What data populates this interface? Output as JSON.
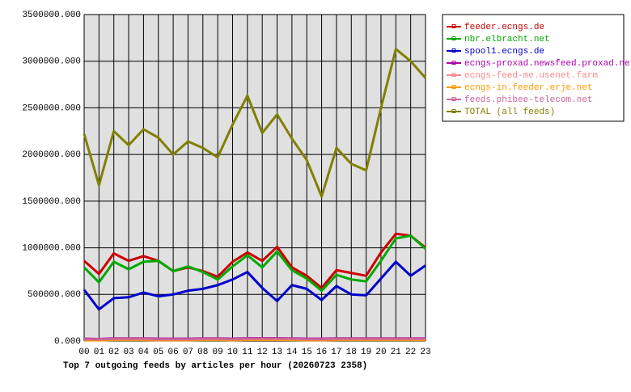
{
  "chart_data": {
    "type": "line",
    "title": "Top 7 outgoing feeds by articles per hour (20260723 2358)",
    "categories": [
      "00",
      "01",
      "02",
      "03",
      "04",
      "05",
      "06",
      "07",
      "08",
      "09",
      "10",
      "11",
      "12",
      "13",
      "14",
      "15",
      "16",
      "17",
      "18",
      "19",
      "20",
      "21",
      "22",
      "23"
    ],
    "ylim": [
      0,
      3500000
    ],
    "yticks": [
      {
        "value": 0,
        "label": "0.000"
      },
      {
        "value": 500000,
        "label": "500000.000"
      },
      {
        "value": 1000000,
        "label": "1000000.000"
      },
      {
        "value": 1500000,
        "label": "1500000.000"
      },
      {
        "value": 2000000,
        "label": "2000000.000"
      },
      {
        "value": 2500000,
        "label": "2500000.000"
      },
      {
        "value": 3000000,
        "label": "3000000.000"
      },
      {
        "value": 3500000,
        "label": "3500000.000"
      }
    ],
    "grid": true,
    "legend": "right",
    "series": [
      {
        "name": "feeder.ecngs.de",
        "color": "#cc0000",
        "values": [
          860000,
          720000,
          940000,
          860000,
          910000,
          860000,
          750000,
          790000,
          750000,
          690000,
          850000,
          950000,
          860000,
          1010000,
          790000,
          700000,
          570000,
          760000,
          730000,
          700000,
          950000,
          1150000,
          1130000,
          1000000
        ]
      },
      {
        "name": "nbr.elbracht.net",
        "color": "#00aa00",
        "values": [
          790000,
          630000,
          850000,
          770000,
          850000,
          860000,
          750000,
          800000,
          740000,
          660000,
          800000,
          920000,
          790000,
          960000,
          760000,
          670000,
          540000,
          710000,
          660000,
          640000,
          860000,
          1100000,
          1130000,
          990000
        ]
      },
      {
        "name": "spool1.ecngs.de",
        "color": "#0000cc",
        "values": [
          550000,
          340000,
          460000,
          470000,
          520000,
          480000,
          500000,
          540000,
          560000,
          600000,
          660000,
          740000,
          570000,
          430000,
          600000,
          560000,
          440000,
          590000,
          500000,
          490000,
          670000,
          850000,
          700000,
          810000
        ]
      },
      {
        "name": "ecngs-proxad.newsfeed.proxad.net",
        "color": "#aa00aa",
        "values": [
          25000,
          22000,
          28000,
          28000,
          28000,
          25000,
          25000,
          25000,
          28000,
          28000,
          25000,
          30000,
          30000,
          30000,
          28000,
          25000,
          25000,
          28000,
          28000,
          28000,
          28000,
          28000,
          28000,
          28000
        ]
      },
      {
        "name": "ecngs-feed-me.usenet.farm",
        "color": "#ff8888",
        "values": [
          12000,
          10000,
          14000,
          14000,
          14000,
          12000,
          12000,
          12000,
          14000,
          14000,
          12000,
          15000,
          15000,
          15000,
          14000,
          12000,
          12000,
          14000,
          14000,
          14000,
          14000,
          14000,
          14000,
          14000
        ]
      },
      {
        "name": "ecngs-in.feeder.erje.net",
        "color": "#ff9900",
        "values": [
          10000,
          8000,
          12000,
          12000,
          12000,
          10000,
          10000,
          10000,
          12000,
          12000,
          10000,
          13000,
          13000,
          13000,
          12000,
          10000,
          10000,
          12000,
          12000,
          12000,
          12000,
          12000,
          12000,
          12000
        ]
      },
      {
        "name": "feeds.phibee-telecom.net",
        "color": "#cc6699",
        "values": [
          20000,
          18000,
          24000,
          24000,
          24000,
          20000,
          20000,
          20000,
          24000,
          24000,
          20000,
          26000,
          26000,
          26000,
          24000,
          20000,
          20000,
          24000,
          24000,
          24000,
          24000,
          24000,
          24000,
          24000
        ]
      },
      {
        "name": "TOTAL (all feeds)",
        "color": "#808000",
        "values": [
          2220000,
          1670000,
          2250000,
          2100000,
          2270000,
          2180000,
          2000000,
          2140000,
          2070000,
          1970000,
          2320000,
          2630000,
          2230000,
          2430000,
          2170000,
          1940000,
          1550000,
          2070000,
          1900000,
          1830000,
          2500000,
          3130000,
          3000000,
          2820000
        ]
      }
    ]
  }
}
